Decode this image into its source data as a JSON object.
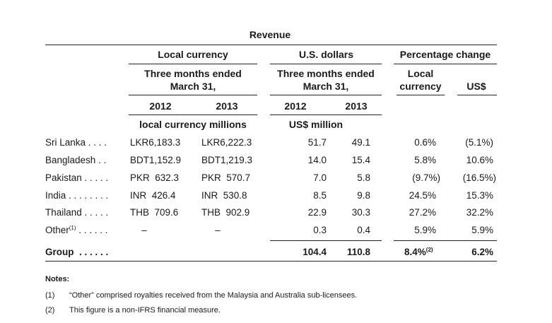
{
  "header": {
    "revenue": "Revenue",
    "local_currency": "Local currency",
    "us_dollars": "U.S. dollars",
    "percentage_change": "Percentage change",
    "three_months_local_1": "Three months ended",
    "three_months_local_2": "March 31,",
    "three_months_usd_1": "Three months ended",
    "three_months_usd_2": "March 31,",
    "pct_local_1": "Local",
    "pct_local_2": "currency",
    "pct_usd": "US$",
    "year_local_2012": "2012",
    "year_local_2013": "2013",
    "year_usd_2012": "2012",
    "year_usd_2013": "2013",
    "unit_local": "local currency millions",
    "unit_usd": "US$ million"
  },
  "rows": [
    {
      "label": "Sri Lanka",
      "dots": " . . . .",
      "sup": "",
      "lc2012": "LKR6,183.3",
      "lc2013": "LKR6,222.3",
      "usd2012": "51.7",
      "usd2013": "49.1",
      "pct_local": "0.6%",
      "pct_usd": "(5.1%)"
    },
    {
      "label": "Bangladesh",
      "dots": " . .",
      "sup": "",
      "lc2012": "BDT1,152.9",
      "lc2013": "BDT1,219.3",
      "usd2012": "14.0",
      "usd2013": "15.4",
      "pct_local": "5.8%",
      "pct_usd": "10.6%"
    },
    {
      "label": "Pakistan",
      "dots": " . . . . .",
      "sup": "",
      "lc2012": "PKR  632.3",
      "lc2013": "PKR  570.7",
      "usd2012": "7.0",
      "usd2013": "5.8",
      "pct_local": "(9.7%)",
      "pct_usd": "(16.5%)"
    },
    {
      "label": "India",
      "dots": " . . . . . . . .",
      "sup": "",
      "lc2012": "INR  426.4",
      "lc2013": "INR  530.8",
      "usd2012": "8.5",
      "usd2013": "9.8",
      "pct_local": "24.5%",
      "pct_usd": "15.3%"
    },
    {
      "label": "Thailand",
      "dots": " . . . . .",
      "sup": "",
      "lc2012": "THB  709.6",
      "lc2013": "THB  902.9",
      "usd2012": "22.9",
      "usd2013": "30.3",
      "pct_local": "27.2%",
      "pct_usd": "32.2%"
    },
    {
      "label": "Other",
      "dots": " . . . . . .",
      "sup": "(1)",
      "lc2012": "–",
      "lc2013": "–",
      "usd2012": "0.3",
      "usd2013": "0.4",
      "pct_local": "5.9%",
      "pct_usd": "5.9%"
    }
  ],
  "total": {
    "label": "Group",
    "dots": "  . . . . . .",
    "usd2012": "104.4",
    "usd2013": "110.8",
    "pct_local": "8.4%",
    "pct_local_sup": "(2)",
    "pct_usd": "6.2%"
  },
  "notes": {
    "title": "Notes:",
    "items": [
      {
        "num": "(1)",
        "text": "“Other” comprised royalties received from the Malaysia and Australia sub-licensees."
      },
      {
        "num": "(2)",
        "text": "This figure is a non-IFRS financial measure."
      }
    ]
  }
}
